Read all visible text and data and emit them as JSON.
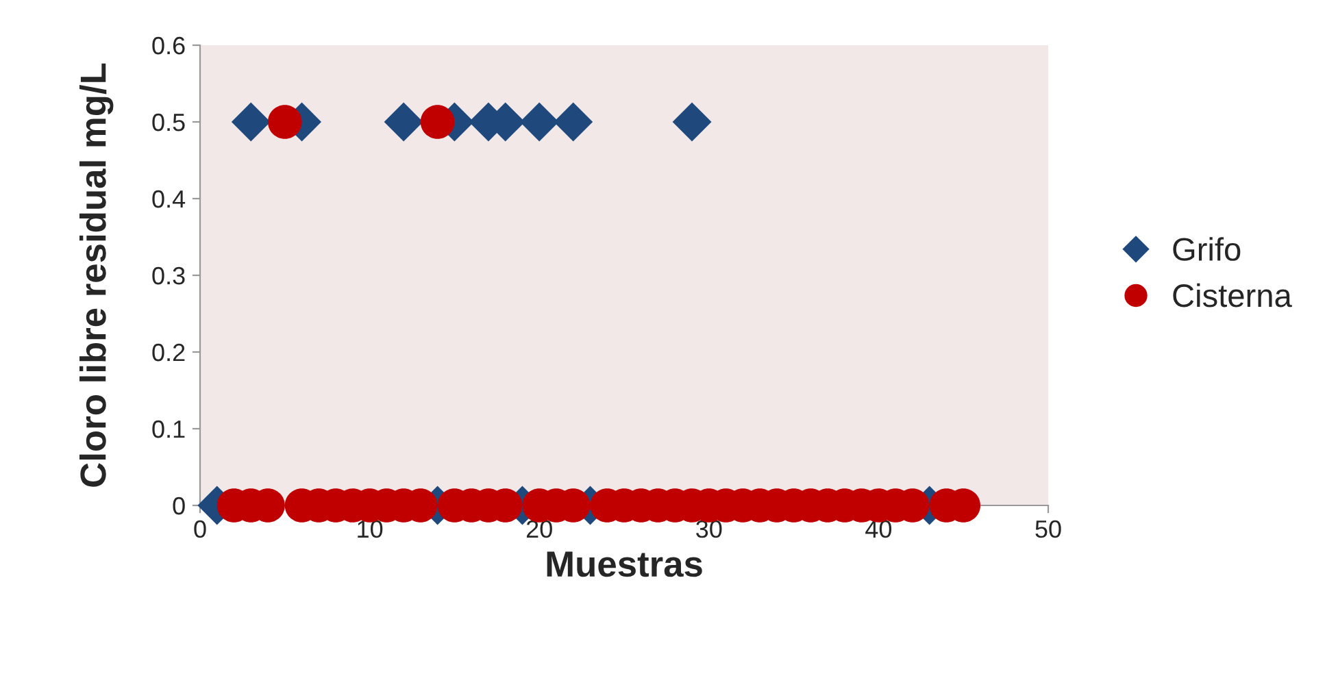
{
  "chart_data": {
    "type": "scatter",
    "xlabel": "Muestras",
    "ylabel": "Cloro libre residual mg/L",
    "xlim": [
      0,
      50
    ],
    "xticks": [
      0,
      10,
      20,
      30,
      40,
      50
    ],
    "ylim": [
      0,
      0.6
    ],
    "yticks": [
      0,
      0.1,
      0.2,
      0.3,
      0.4,
      0.5,
      0.6
    ],
    "grid": false,
    "legend": "right",
    "series": [
      {
        "name": "Grifo",
        "color": "#1f497d",
        "marker": "diamond",
        "x": [
          1,
          3,
          6,
          12,
          14,
          15,
          17,
          18,
          19,
          20,
          22,
          23,
          29,
          43
        ],
        "values": [
          0,
          0.5,
          0.5,
          0.5,
          0,
          0.5,
          0.5,
          0.5,
          0,
          0.5,
          0.5,
          0,
          0.5,
          0
        ]
      },
      {
        "name": "Cisterna",
        "color": "#c00000",
        "marker": "circle",
        "x": [
          2,
          3,
          4,
          5,
          6,
          7,
          8,
          9,
          10,
          11,
          12,
          13,
          14,
          15,
          16,
          17,
          18,
          20,
          21,
          22,
          24,
          25,
          26,
          27,
          28,
          29,
          30,
          31,
          32,
          33,
          34,
          35,
          36,
          37,
          38,
          39,
          40,
          41,
          42,
          44,
          45
        ],
        "values": [
          0,
          0,
          0,
          0.5,
          0,
          0,
          0,
          0,
          0,
          0,
          0,
          0,
          0.5,
          0,
          0,
          0,
          0,
          0,
          0,
          0,
          0,
          0,
          0,
          0,
          0,
          0,
          0,
          0,
          0,
          0,
          0,
          0,
          0,
          0,
          0,
          0,
          0,
          0,
          0,
          0,
          0
        ]
      }
    ]
  }
}
